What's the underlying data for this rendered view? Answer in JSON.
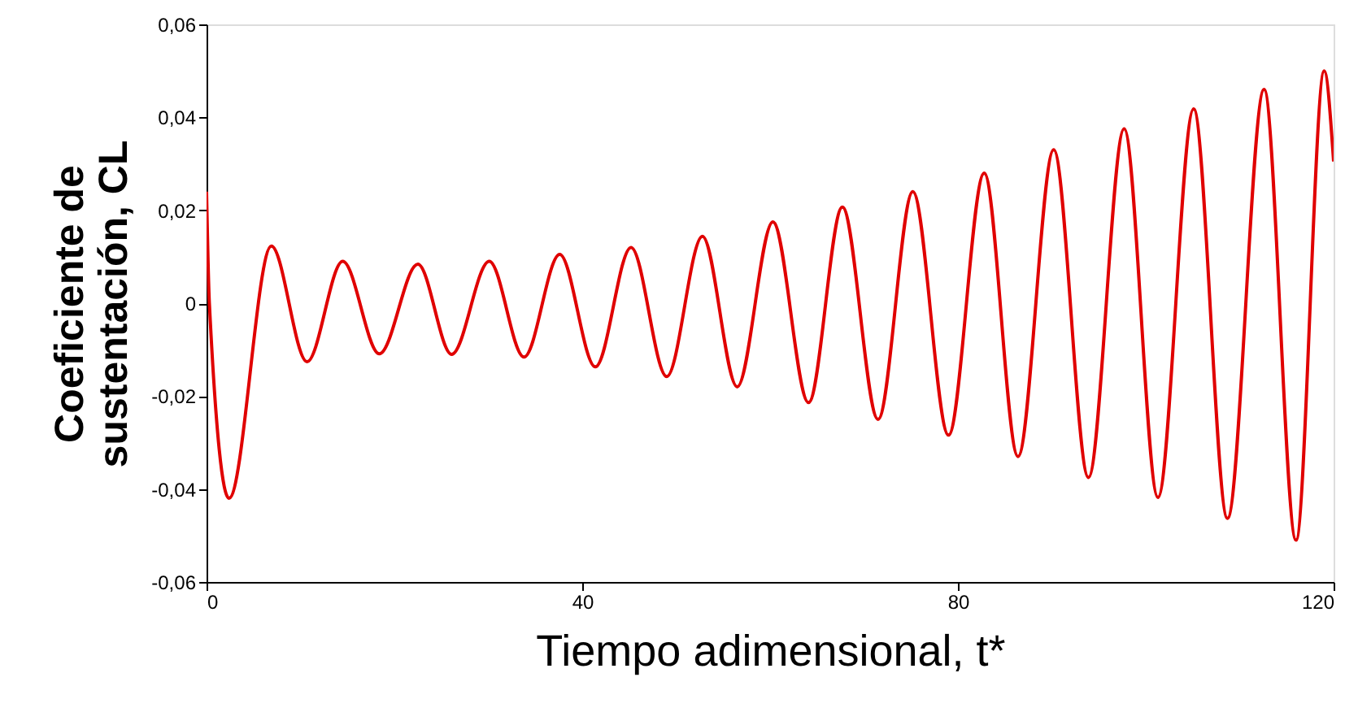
{
  "chart_data": {
    "type": "line",
    "xlabel": "Tiempo adimensional, t*",
    "ylabel": "Coeficiente de\nsustentación, CL",
    "x": [
      0,
      0.3,
      2.4,
      6.9,
      10.7,
      14.5,
      18.4,
      22.5,
      26.1,
      30.1,
      33.8,
      37.6,
      41.4,
      45.2,
      49,
      52.8,
      56.5,
      60.3,
      64.1,
      67.7,
      71.5,
      75.2,
      79,
      82.8,
      86.4,
      90.2,
      93.9,
      97.7,
      101.3,
      105.1,
      108.7,
      112.6,
      116,
      119,
      120
    ],
    "series": [
      {
        "color": "#e00000",
        "values": [
          0.024,
          0.0,
          -0.042,
          0.0123,
          -0.0126,
          0.009,
          -0.0109,
          0.0084,
          -0.011,
          0.009,
          -0.0116,
          0.0105,
          -0.0137,
          0.012,
          -0.0158,
          0.0144,
          -0.018,
          0.0175,
          -0.0214,
          0.0207,
          -0.025,
          0.024,
          -0.0284,
          0.028,
          -0.033,
          0.033,
          -0.0375,
          0.0375,
          -0.0418,
          0.0418,
          -0.0463,
          0.046,
          -0.051,
          0.05,
          0.0305
        ]
      }
    ],
    "xlim": [
      0,
      120
    ],
    "xticks": [
      0,
      40,
      80,
      120
    ],
    "ylim": [
      -0.06,
      0.06
    ],
    "yticks": [
      {
        "value": -0.06,
        "label": "-0,06"
      },
      {
        "value": -0.04,
        "label": "-0,04"
      },
      {
        "value": -0.02,
        "label": "-0,02"
      },
      0,
      {
        "value": 0.02,
        "label": "0,02"
      },
      {
        "value": 0.04,
        "label": "0,04"
      },
      {
        "value": 0.06,
        "label": "0,06"
      }
    ],
    "grid": false,
    "marker": "none",
    "line_style": "solid"
  }
}
